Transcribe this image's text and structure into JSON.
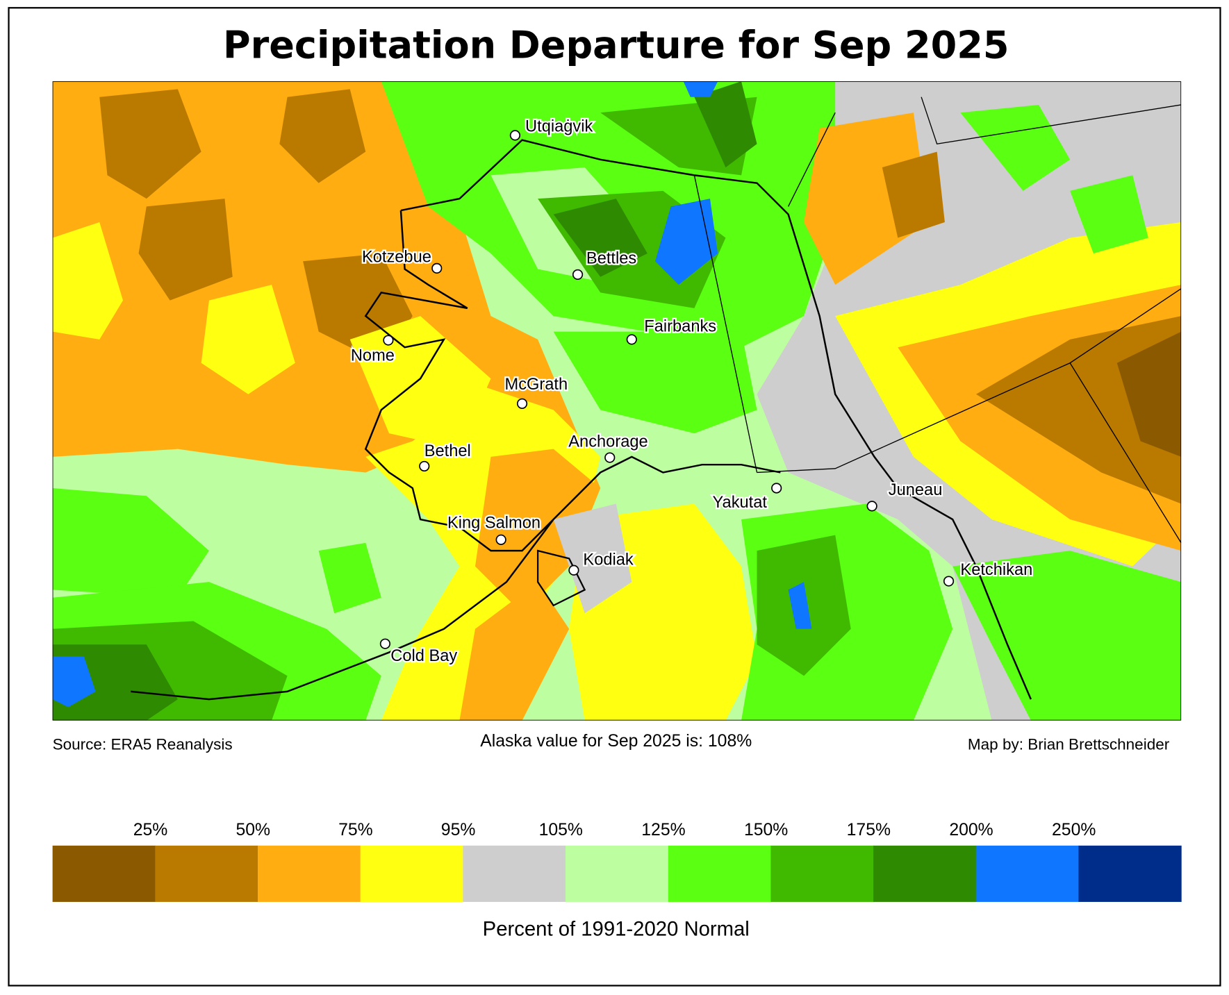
{
  "title": "Precipitation Departure for Sep 2025",
  "source": "Source: ERA5 Reanalysis",
  "summary": "Alaska value for Sep 2025 is: 108%",
  "credit": "Map by: Brian Brettschneider",
  "cities": [
    "Utqiaġvik",
    "Kotzebue",
    "Bettles",
    "Fairbanks",
    "Nome",
    "McGrath",
    "Anchorage",
    "Bethel",
    "Yakutat",
    "Juneau",
    "King Salmon",
    "Kodiak",
    "Ketchikan",
    "Cold Bay"
  ],
  "legend": {
    "label": "Percent of 1991-2020 Normal",
    "ticks": [
      "25%",
      "50%",
      "75%",
      "95%",
      "105%",
      "125%",
      "150%",
      "175%",
      "200%",
      "250%"
    ],
    "colors": [
      "#8b5a00",
      "#ba7a00",
      "#ffad11",
      "#ffff11",
      "#cecece",
      "#bdffa0",
      "#5aff11",
      "#3fba00",
      "#2e8a00",
      "#0f76ff",
      "#002d8a"
    ]
  }
}
